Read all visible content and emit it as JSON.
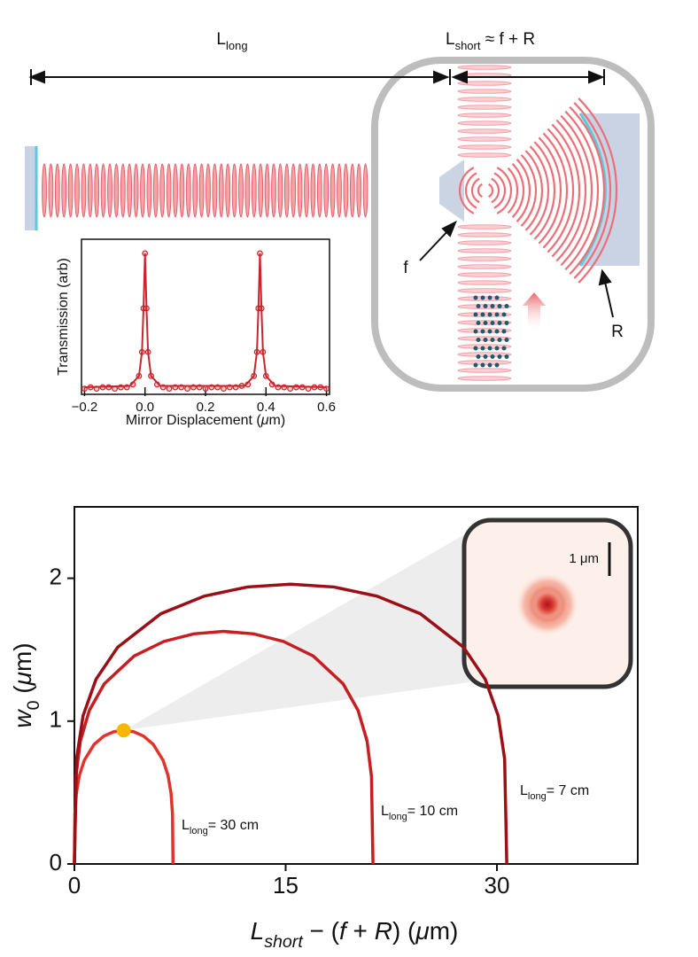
{
  "diagram": {
    "long_label": {
      "main": "L",
      "sub": "long"
    },
    "short_label": {
      "main": "L",
      "sub": "short",
      "text": " ≈ f + R"
    },
    "f_label": "f",
    "R_label": "R"
  },
  "chart_data": [
    {
      "type": "line",
      "ylabel": "Transmission (arb)",
      "xlabel": [
        {
          "text": "Mirror Displacement ("
        },
        {
          "text": "μ",
          "style": "italic"
        },
        {
          "text": "m)"
        }
      ],
      "xlim": [
        -0.21,
        0.61
      ],
      "ylim": [
        0,
        1.1
      ],
      "xticks": [
        {
          "value": -0.2,
          "label": "−0.2"
        },
        {
          "value": 0,
          "label": "0.0"
        },
        0.2,
        0.4,
        0.6
      ],
      "series": [
        {
          "style": "markers",
          "color": "#c8262c",
          "x": [
            -0.2,
            -0.18,
            -0.16,
            -0.14,
            -0.12,
            -0.1,
            -0.08,
            -0.06,
            -0.04,
            -0.02,
            -0.01,
            -0.005,
            0,
            0.005,
            0.01,
            0.02,
            0.04,
            0.06,
            0.08,
            0.1,
            0.12,
            0.14,
            0.16,
            0.18,
            0.2,
            0.22,
            0.24,
            0.26,
            0.28,
            0.3,
            0.32,
            0.34,
            0.36,
            0.37,
            0.375,
            0.38,
            0.385,
            0.39,
            0.4,
            0.42,
            0.44,
            0.46,
            0.48,
            0.5,
            0.52,
            0.54,
            0.56,
            0.58,
            0.6
          ],
          "values": [
            0.04,
            0.05,
            0.04,
            0.05,
            0.05,
            0.04,
            0.05,
            0.05,
            0.07,
            0.13,
            0.3,
            0.61,
            1.0,
            0.61,
            0.3,
            0.13,
            0.07,
            0.05,
            0.04,
            0.05,
            0.05,
            0.04,
            0.05,
            0.05,
            0.04,
            0.05,
            0.05,
            0.04,
            0.05,
            0.05,
            0.06,
            0.07,
            0.13,
            0.3,
            0.61,
            1.0,
            0.61,
            0.3,
            0.13,
            0.07,
            0.05,
            0.05,
            0.04,
            0.05,
            0.05,
            0.04,
            0.05,
            0.05,
            0.04
          ]
        },
        {
          "style": "line",
          "color": "#c8262c",
          "x": [
            -0.2,
            -0.05,
            -0.02,
            -0.01,
            -0.005,
            0,
            0.005,
            0.01,
            0.02,
            0.05,
            0.33,
            0.36,
            0.37,
            0.375,
            0.38,
            0.385,
            0.39,
            0.4,
            0.43,
            0.6
          ],
          "values": [
            0.05,
            0.06,
            0.13,
            0.3,
            0.61,
            1.0,
            0.61,
            0.3,
            0.13,
            0.06,
            0.06,
            0.13,
            0.3,
            0.61,
            1.0,
            0.61,
            0.3,
            0.13,
            0.06,
            0.05
          ]
        }
      ]
    },
    {
      "type": "line",
      "ylabel": [
        {
          "text": "w",
          "style": "italic"
        },
        {
          "text": "0",
          "sub": true
        },
        {
          "text": " ("
        },
        {
          "text": "μ",
          "style": "italic"
        },
        {
          "text": "m)"
        }
      ],
      "xlabel": [
        {
          "text": "L",
          "style": "italic"
        },
        {
          "text": "short",
          "style": "italic",
          "sub": true
        },
        {
          "text": " − ("
        },
        {
          "text": "f",
          "style": "italic"
        },
        {
          "text": " + "
        },
        {
          "text": "R",
          "style": "italic"
        },
        {
          "text": ") ("
        },
        {
          "text": "μ",
          "style": "italic"
        },
        {
          "text": "m)"
        }
      ],
      "xlim": [
        0,
        40
      ],
      "ylim": [
        0,
        2.5
      ],
      "xticks": [
        0,
        15,
        30
      ],
      "yticks": [
        0,
        1,
        2
      ],
      "inset_scale": "1 μm",
      "highlight_color": "#f5b800",
      "series": [
        {
          "style": "line",
          "color": "#e0332b",
          "label": {
            "main": "L",
            "sub": "long",
            "text": "= 30 cm"
          },
          "x": [
            0,
            0.035,
            0.14,
            0.35,
            0.7,
            1.4,
            2.1,
            2.8,
            3.5,
            4.2,
            4.9,
            5.6,
            6.3,
            6.65,
            6.86,
            6.965,
            7.0
          ],
          "values": [
            0,
            0.351,
            0.495,
            0.618,
            0.725,
            0.837,
            0.896,
            0.926,
            0.935,
            0.926,
            0.896,
            0.837,
            0.725,
            0.618,
            0.495,
            0.351,
            0
          ]
        },
        {
          "style": "line",
          "color": "#c51f22",
          "label": {
            "main": "L",
            "sub": "long",
            "text": "= 10 cm"
          },
          "x": [
            0,
            0.106,
            0.424,
            1.06,
            2.12,
            4.24,
            6.36,
            8.48,
            10.6,
            12.72,
            14.84,
            16.96,
            19.08,
            20.14,
            20.78,
            21.094,
            21.2
          ],
          "values": [
            0,
            0.611,
            0.861,
            1.075,
            1.261,
            1.456,
            1.558,
            1.611,
            1.628,
            1.611,
            1.558,
            1.456,
            1.261,
            1.075,
            0.861,
            0.611,
            0
          ]
        },
        {
          "style": "line",
          "color": "#9b0f17",
          "label": {
            "main": "L",
            "sub": "long",
            "text": "= 7 cm"
          },
          "x": [
            0,
            0.1535,
            0.614,
            1.535,
            3.07,
            6.14,
            9.21,
            12.28,
            15.35,
            18.42,
            21.49,
            24.56,
            27.63,
            29.17,
            30.09,
            30.5465,
            30.7
          ],
          "values": [
            0,
            0.736,
            1.037,
            1.293,
            1.517,
            1.752,
            1.875,
            1.939,
            1.959,
            1.939,
            1.875,
            1.752,
            1.517,
            1.293,
            1.037,
            0.736,
            0
          ]
        }
      ]
    }
  ]
}
